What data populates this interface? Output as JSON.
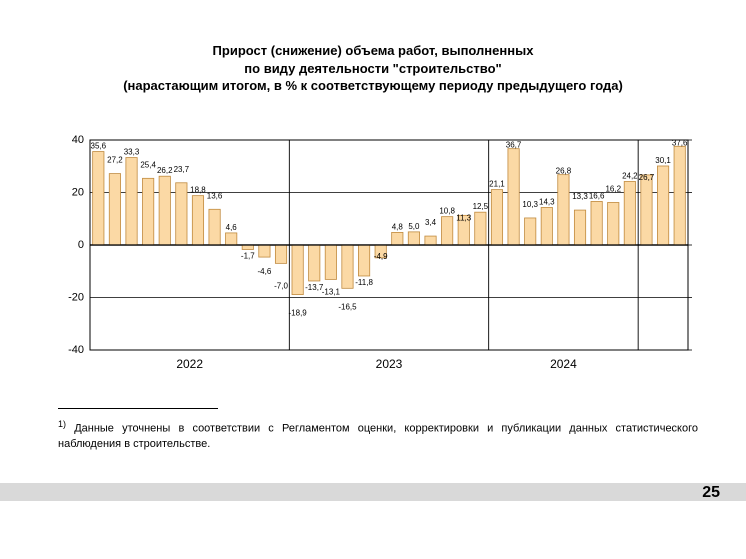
{
  "title": {
    "line1": "Прирост (снижение) объема работ, выполненных",
    "line2": "по виду деятельности \"строительство\"",
    "line3": "(нарастающим итогом, в % к соответствующему периоду предыдущего года)"
  },
  "footnote": {
    "marker": "1)",
    "text": "Данные уточнены в соответствии с Регламентом оценки, корректировки и публикации данных статистического наблюдения в строительстве."
  },
  "page_number": "25",
  "chart": {
    "type": "bar",
    "ylim": [
      -40,
      40
    ],
    "ytick_step": 20,
    "yticks": [
      -40,
      -20,
      0,
      20,
      40
    ],
    "background_color": "#ffffff",
    "axis_color": "#000000",
    "grid_color": "#000000",
    "bar_fill": "#fbd9a5",
    "bar_stroke": "#c08a3e",
    "bar_width_ratio": 0.68,
    "label_fontsize": 8,
    "axis_label_fontsize": 11,
    "year_label_fontsize": 12,
    "years": [
      {
        "label": "2022",
        "boundary_after_index": 11
      },
      {
        "label": "2023",
        "boundary_after_index": 23
      },
      {
        "label": "2024",
        "boundary_after_index": 32
      }
    ],
    "values": [
      35.6,
      27.2,
      33.3,
      25.4,
      26.2,
      23.7,
      18.8,
      13.6,
      4.6,
      -1.7,
      -4.6,
      -7.0,
      -18.9,
      -13.7,
      -13.1,
      -16.5,
      -11.8,
      -4.9,
      4.8,
      5.0,
      3.4,
      10.8,
      11.3,
      12.5,
      21.1,
      36.7,
      10.3,
      14.3,
      26.8,
      13.3,
      16.6,
      16.2,
      24.2,
      26.7,
      30.1,
      37.6
    ],
    "labels": [
      "35,6",
      "27,2",
      "33,3",
      "25,4",
      "26,2",
      "23,7",
      "18,8",
      "13,6",
      "4,6",
      "-1,7",
      "-4,6",
      "-7,0",
      "-18,9",
      "-13,7",
      "-13,1",
      "-16,5",
      "-11,8",
      "-4,9",
      "4,8",
      "5,0",
      "3,4",
      "10,8",
      "11,3",
      "12,5",
      "21,1",
      "36,7",
      "10,3",
      "14,3",
      "26,8",
      "13,3",
      "16,6",
      "16,2",
      "24,2",
      "26,7",
      "30,1",
      "37,6"
    ],
    "label_offsets_y": [
      0,
      8,
      0,
      8,
      0,
      8,
      0,
      8,
      0,
      0,
      8,
      16,
      12,
      0,
      6,
      12,
      0,
      -8,
      0,
      0,
      8,
      0,
      -8,
      0,
      0,
      -2,
      8,
      0,
      -2,
      8,
      0,
      8,
      0,
      -8,
      0,
      -2
    ]
  }
}
